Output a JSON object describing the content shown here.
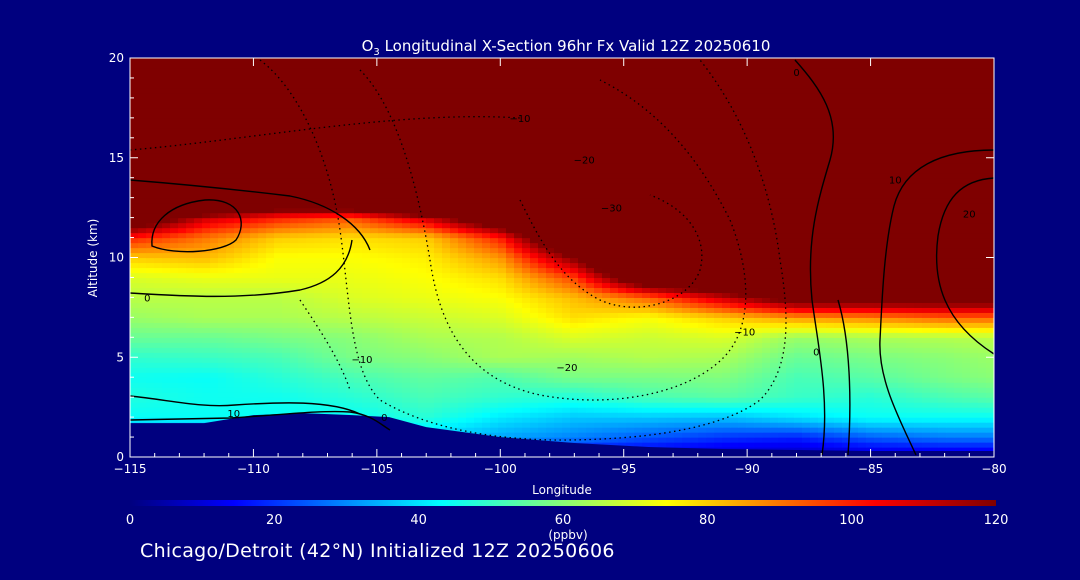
{
  "chart_data": {
    "type": "heatmap",
    "title": {
      "prefix": "O",
      "subscript": "3",
      "suffix": " Longitudinal X-Section 96hr  Fx Valid 12Z 20250610"
    },
    "xlabel": "Longitude",
    "ylabel": "Altitude (km)",
    "xlim": [
      -115,
      -80
    ],
    "ylim": [
      0,
      20
    ],
    "x_ticks": [
      -115,
      -110,
      -105,
      -100,
      -95,
      -90,
      -85,
      -80
    ],
    "x_tick_labels": [
      "−115",
      "−110",
      "−105",
      "−100",
      "−95",
      "−90",
      "−85",
      "−80"
    ],
    "y_ticks": [
      0,
      5,
      10,
      15,
      20
    ],
    "y_tick_labels": [
      "0",
      "5",
      "10",
      "15",
      "20"
    ],
    "colorbar": {
      "range": [
        0,
        120
      ],
      "ticks": [
        0,
        20,
        40,
        60,
        80,
        100,
        120
      ],
      "tick_labels": [
        "0",
        "20",
        "40",
        "60",
        "80",
        "100",
        "120"
      ],
      "unit_label": "(ppbv)"
    },
    "terrain_km": {
      "x": [
        -115,
        -112,
        -110,
        -108,
        -106,
        -104.5,
        -103,
        -100,
        -97,
        -94,
        -91,
        -88,
        -85,
        -82,
        -80
      ],
      "y": [
        1.7,
        1.7,
        2.1,
        2.2,
        2.1,
        2.0,
        1.5,
        1.0,
        0.7,
        0.5,
        0.4,
        0.35,
        0.3,
        0.3,
        0.3
      ]
    },
    "ozone_field": {
      "x": [
        -115,
        -112,
        -109,
        -106,
        -103,
        -100,
        -97,
        -94,
        -91,
        -88,
        -85,
        -82,
        -80
      ],
      "z": [
        0,
        1,
        2,
        3,
        4,
        5,
        6,
        7,
        8,
        9,
        10,
        11,
        12,
        13,
        15,
        20
      ],
      "ppbv": [
        [
          20,
          20,
          20,
          20,
          15,
          12,
          10,
          8,
          6,
          5,
          6,
          6,
          6
        ],
        [
          20,
          20,
          20,
          30,
          38,
          33,
          29,
          24,
          20,
          18,
          25,
          28,
          28
        ],
        [
          44,
          44,
          44,
          44,
          48,
          41,
          37,
          37,
          36,
          40,
          44,
          44,
          44
        ],
        [
          47,
          45,
          45,
          48,
          52,
          49,
          47,
          52,
          54,
          50,
          48,
          52,
          54
        ],
        [
          45,
          44,
          48,
          52,
          55,
          53,
          58,
          58,
          59,
          52,
          54,
          58,
          60
        ],
        [
          49,
          50,
          52,
          58,
          60,
          64,
          63,
          65,
          64,
          56,
          58,
          60,
          62
        ],
        [
          56,
          56,
          58,
          60,
          64,
          65,
          70,
          68,
          70,
          62,
          64,
          65,
          66
        ],
        [
          62,
          64,
          64,
          66,
          68,
          70,
          78,
          74,
          80,
          86,
          88,
          92,
          92
        ],
        [
          66,
          66,
          66,
          70,
          72,
          74,
          82,
          92,
          110,
          130,
          130,
          130,
          130
        ],
        [
          70,
          72,
          72,
          72,
          74,
          78,
          96,
          140,
          150,
          150,
          150,
          150,
          150
        ],
        [
          80,
          82,
          74,
          74,
          76,
          86,
          120,
          170,
          180,
          180,
          180,
          180,
          180
        ],
        [
          100,
          90,
          80,
          78,
          80,
          100,
          150,
          200,
          200,
          200,
          200,
          200,
          200
        ],
        [
          140,
          110,
          100,
          94,
          110,
          140,
          200,
          250,
          250,
          250,
          250,
          250,
          250
        ],
        [
          180,
          180,
          150,
          160,
          200,
          220,
          250,
          300,
          300,
          300,
          300,
          300,
          300
        ],
        [
          250,
          250,
          250,
          300,
          300,
          300,
          300,
          300,
          300,
          300,
          300,
          300,
          300
        ],
        [
          400,
          400,
          400,
          400,
          400,
          400,
          400,
          400,
          400,
          400,
          400,
          400,
          400
        ]
      ]
    },
    "contour_labels": [
      {
        "text": "0",
        "x": -114.3,
        "y": 8.0
      },
      {
        "text": "0",
        "x": -104.7,
        "y": 2.0
      },
      {
        "text": "0",
        "x": -87.2,
        "y": 5.3
      },
      {
        "text": "0",
        "x": -88.0,
        "y": 19.3
      },
      {
        "text": "10",
        "x": -110.8,
        "y": 2.2
      },
      {
        "text": "10",
        "x": -84.0,
        "y": 13.9
      },
      {
        "text": "20",
        "x": -81.0,
        "y": 12.2
      },
      {
        "text": "−10",
        "x": -99.2,
        "y": 17.0
      },
      {
        "text": "−10",
        "x": -105.6,
        "y": 4.9
      },
      {
        "text": "−10",
        "x": -90.1,
        "y": 6.3
      },
      {
        "text": "−20",
        "x": -96.6,
        "y": 14.9
      },
      {
        "text": "−20",
        "x": -97.3,
        "y": 4.5
      },
      {
        "text": "−30",
        "x": -95.5,
        "y": 12.5
      }
    ]
  },
  "footer_text": "Chicago/Detroit (42°N) Initialized 12Z 20250606"
}
